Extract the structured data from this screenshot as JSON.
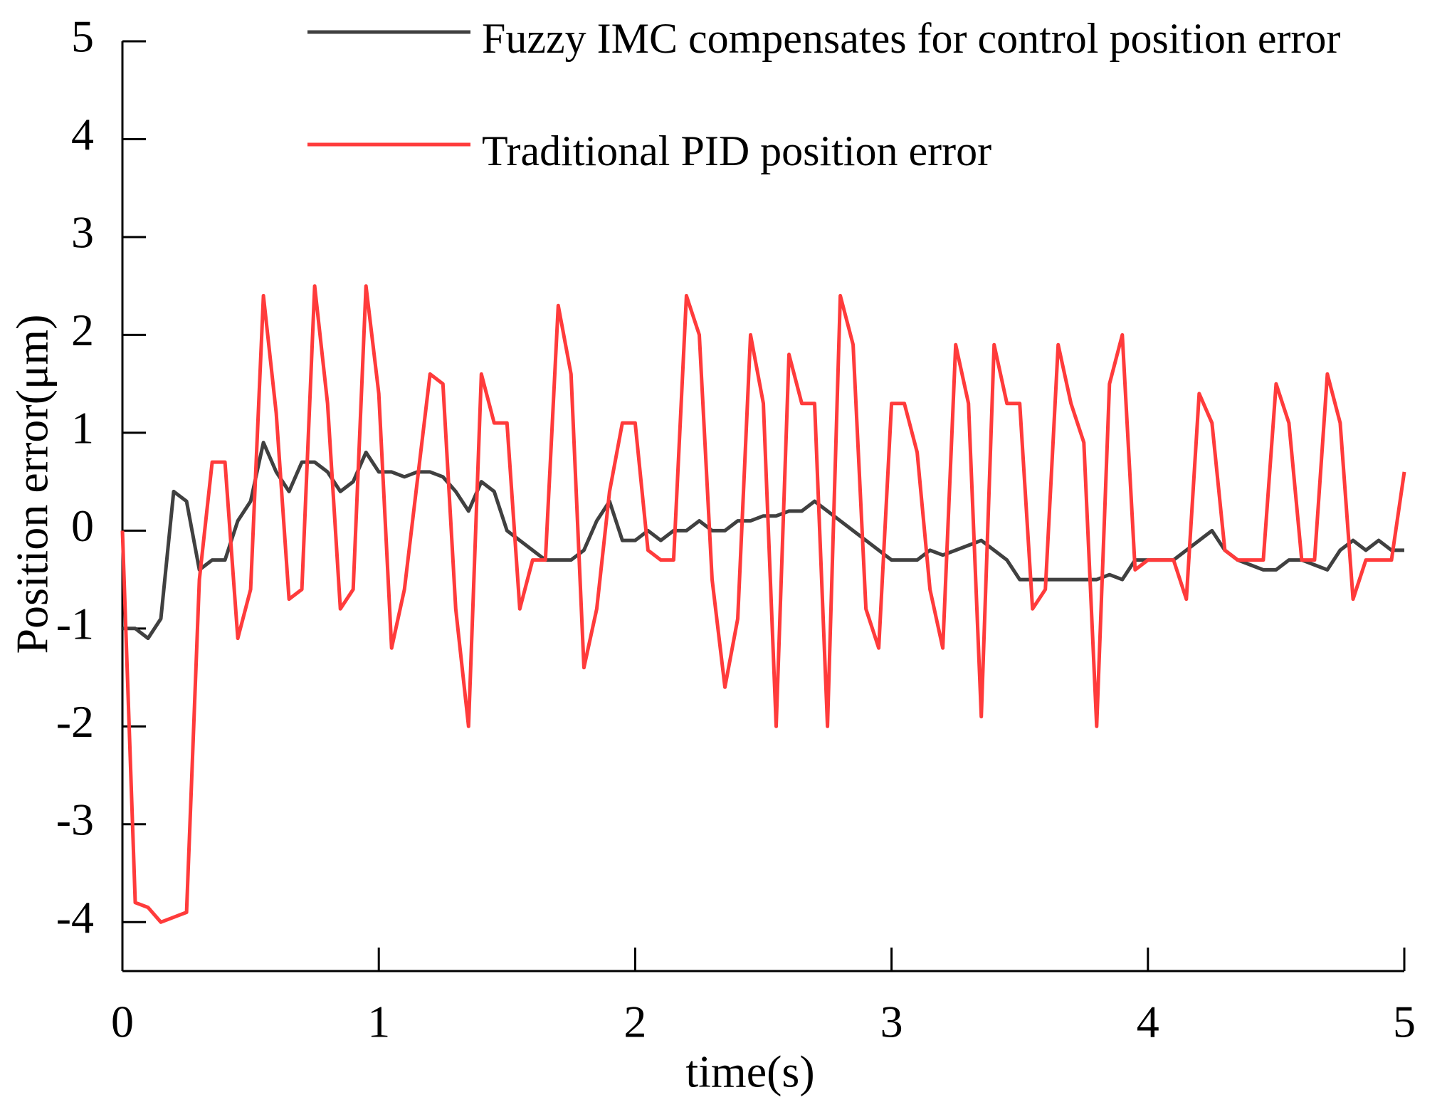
{
  "chart_data": {
    "type": "line",
    "xlabel": "time(s)",
    "ylabel": "Position error(μm)",
    "xlim": [
      0,
      5
    ],
    "ylim": [
      -4.5,
      5
    ],
    "xticks": [
      0,
      1,
      2,
      3,
      4,
      5
    ],
    "yticks": [
      -4,
      -3,
      -2,
      -1,
      0,
      1,
      2,
      3,
      4,
      5
    ],
    "legend": "top-right",
    "x": [
      0,
      0.05,
      0.1,
      0.15,
      0.2,
      0.25,
      0.3,
      0.35,
      0.4,
      0.45,
      0.5,
      0.55,
      0.6,
      0.65,
      0.7,
      0.75,
      0.8,
      0.85,
      0.9,
      0.95,
      1,
      1.05,
      1.1,
      1.15,
      1.2,
      1.25,
      1.3,
      1.35,
      1.4,
      1.45,
      1.5,
      1.55,
      1.6,
      1.65,
      1.7,
      1.75,
      1.8,
      1.85,
      1.9,
      1.95,
      2,
      2.05,
      2.1,
      2.15,
      2.2,
      2.25,
      2.3,
      2.35,
      2.4,
      2.45,
      2.5,
      2.55,
      2.6,
      2.65,
      2.7,
      2.75,
      2.8,
      2.85,
      2.9,
      2.95,
      3,
      3.05,
      3.1,
      3.15,
      3.2,
      3.25,
      3.3,
      3.35,
      3.4,
      3.45,
      3.5,
      3.55,
      3.6,
      3.65,
      3.7,
      3.75,
      3.8,
      3.85,
      3.9,
      3.95,
      4,
      4.05,
      4.1,
      4.15,
      4.2,
      4.25,
      4.3,
      4.35,
      4.4,
      4.45,
      4.5,
      4.55,
      4.6,
      4.65,
      4.7,
      4.75,
      4.8,
      4.85,
      4.9,
      4.95,
      5
    ],
    "series": [
      {
        "name": "Fuzzy IMC compensates for control position error",
        "color": "#404040",
        "values": [
          -1.0,
          -1.0,
          -1.1,
          -0.9,
          0.4,
          0.3,
          -0.4,
          -0.3,
          -0.3,
          0.1,
          0.3,
          0.9,
          0.6,
          0.4,
          0.7,
          0.7,
          0.6,
          0.4,
          0.5,
          0.8,
          0.6,
          0.6,
          0.55,
          0.6,
          0.6,
          0.55,
          0.4,
          0.2,
          0.5,
          0.4,
          0.0,
          -0.1,
          -0.2,
          -0.3,
          -0.3,
          -0.3,
          -0.2,
          0.1,
          0.3,
          -0.1,
          -0.1,
          0.0,
          -0.1,
          0.0,
          0.0,
          0.1,
          0.0,
          0.0,
          0.1,
          0.1,
          0.15,
          0.15,
          0.2,
          0.2,
          0.3,
          0.2,
          0.1,
          0.0,
          -0.1,
          -0.2,
          -0.3,
          -0.3,
          -0.3,
          -0.2,
          -0.25,
          -0.2,
          -0.15,
          -0.1,
          -0.2,
          -0.3,
          -0.5,
          -0.5,
          -0.5,
          -0.5,
          -0.5,
          -0.5,
          -0.5,
          -0.45,
          -0.5,
          -0.3,
          -0.3,
          -0.3,
          -0.3,
          -0.2,
          -0.1,
          0.0,
          -0.2,
          -0.3,
          -0.35,
          -0.4,
          -0.4,
          -0.3,
          -0.3,
          -0.35,
          -0.4,
          -0.2,
          -0.1,
          -0.2,
          -0.1,
          -0.2,
          -0.2
        ]
      },
      {
        "name": "Traditional PID position error",
        "color": "#ff3b3b",
        "values": [
          0,
          -3.8,
          -3.85,
          -4.0,
          -3.95,
          -3.9,
          -0.5,
          0.7,
          0.7,
          -1.1,
          -0.6,
          2.4,
          1.2,
          -0.7,
          -0.6,
          2.5,
          1.3,
          -0.8,
          -0.6,
          2.5,
          1.4,
          -1.2,
          -0.6,
          0.5,
          1.6,
          1.5,
          -0.8,
          -2.0,
          1.6,
          1.1,
          1.1,
          -0.8,
          -0.3,
          -0.3,
          2.3,
          1.6,
          -1.4,
          -0.8,
          0.4,
          1.1,
          1.1,
          -0.2,
          -0.3,
          -0.3,
          2.4,
          2.0,
          -0.5,
          -1.6,
          -0.9,
          2.0,
          1.3,
          -2.0,
          1.8,
          1.3,
          1.3,
          -2.0,
          2.4,
          1.9,
          -0.8,
          -1.2,
          1.3,
          1.3,
          0.8,
          -0.6,
          -1.2,
          1.9,
          1.3,
          -1.9,
          1.9,
          1.3,
          1.3,
          -0.8,
          -0.6,
          1.9,
          1.3,
          0.9,
          -2.0,
          1.5,
          2.0,
          -0.4,
          -0.3,
          -0.3,
          -0.3,
          -0.7,
          1.4,
          1.1,
          -0.2,
          -0.3,
          -0.3,
          -0.3,
          1.5,
          1.1,
          -0.3,
          -0.3,
          1.6,
          1.1,
          -0.7,
          -0.3,
          -0.3,
          -0.3,
          0.6
        ]
      }
    ]
  }
}
